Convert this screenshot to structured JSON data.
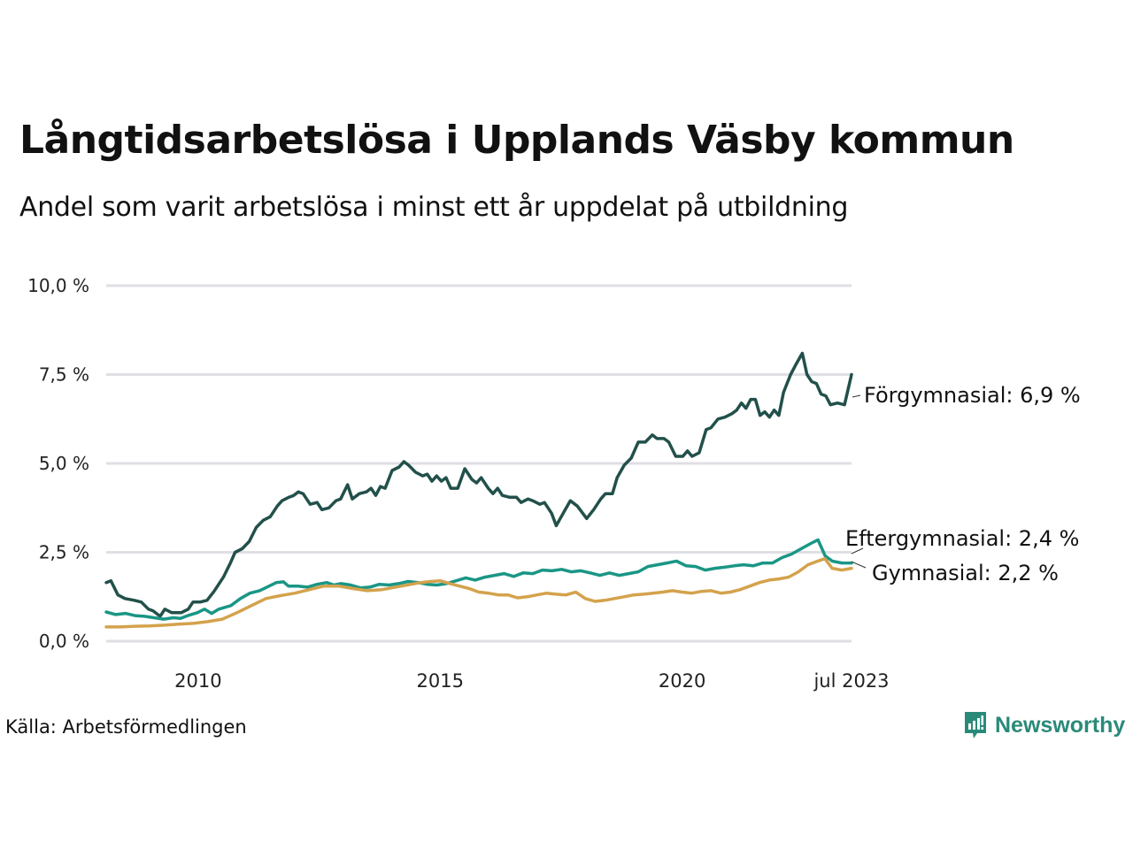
{
  "header": {
    "title": "Långtidsarbetslösa i Upplands Väsby kommun",
    "subtitle": "Andel som varit arbetslösa i minst ett år uppdelat på utbildning"
  },
  "footer": {
    "source": "Källa: Arbetsförmedlingen",
    "brand": "Newsworthy",
    "brand_icon": "newsworthy-logo-icon",
    "brand_color": "#2a8a7a"
  },
  "chart_data": {
    "type": "line",
    "title": "Långtidsarbetslösa i Upplands Väsby kommun",
    "subtitle": "Andel som varit arbetslösa i minst ett år uppdelat på utbildning",
    "xlabel": "",
    "ylabel": "",
    "x_ticks": [
      {
        "value": 2010,
        "label": "2010"
      },
      {
        "value": 2015,
        "label": "2015"
      },
      {
        "value": 2020,
        "label": "2020"
      },
      {
        "value": 2023.5,
        "label": "jul 2023"
      }
    ],
    "y_ticks": [
      {
        "value": 0,
        "label": "0,0 %"
      },
      {
        "value": 2.5,
        "label": "2,5 %"
      },
      {
        "value": 5,
        "label": "5,0 %"
      },
      {
        "value": 7.5,
        "label": "7,5 %"
      },
      {
        "value": 10,
        "label": "10,0 %"
      }
    ],
    "xlim": [
      2008.1,
      2023.5
    ],
    "ylim": [
      0,
      10
    ],
    "grid": "horizontal",
    "legend": "end-of-line labels (right)",
    "series": [
      {
        "name": "Förgymnasial",
        "end_label": "Förgymnasial: 6,9 %",
        "color": "#22504a",
        "points": [
          [
            2008.1,
            1.65
          ],
          [
            2008.2,
            1.7
          ],
          [
            2008.35,
            1.3
          ],
          [
            2008.5,
            1.2
          ],
          [
            2008.7,
            1.15
          ],
          [
            2008.85,
            1.1
          ],
          [
            2009.0,
            0.9
          ],
          [
            2009.1,
            0.85
          ],
          [
            2009.25,
            0.7
          ],
          [
            2009.35,
            0.9
          ],
          [
            2009.5,
            0.8
          ],
          [
            2009.7,
            0.8
          ],
          [
            2009.85,
            0.9
          ],
          [
            2009.95,
            1.1
          ],
          [
            2010.1,
            1.1
          ],
          [
            2010.25,
            1.15
          ],
          [
            2010.4,
            1.4
          ],
          [
            2010.6,
            1.8
          ],
          [
            2010.75,
            2.2
          ],
          [
            2010.85,
            2.5
          ],
          [
            2011.0,
            2.6
          ],
          [
            2011.15,
            2.8
          ],
          [
            2011.3,
            3.2
          ],
          [
            2011.45,
            3.4
          ],
          [
            2011.6,
            3.5
          ],
          [
            2011.75,
            3.8
          ],
          [
            2011.85,
            3.95
          ],
          [
            2012.0,
            4.05
          ],
          [
            2012.1,
            4.1
          ],
          [
            2012.2,
            4.2
          ],
          [
            2012.3,
            4.15
          ],
          [
            2012.45,
            3.85
          ],
          [
            2012.6,
            3.9
          ],
          [
            2012.7,
            3.7
          ],
          [
            2012.85,
            3.75
          ],
          [
            2013.0,
            3.95
          ],
          [
            2013.1,
            4.0
          ],
          [
            2013.25,
            4.4
          ],
          [
            2013.35,
            4.0
          ],
          [
            2013.5,
            4.15
          ],
          [
            2013.65,
            4.2
          ],
          [
            2013.75,
            4.3
          ],
          [
            2013.85,
            4.1
          ],
          [
            2013.95,
            4.35
          ],
          [
            2014.05,
            4.3
          ],
          [
            2014.2,
            4.8
          ],
          [
            2014.35,
            4.9
          ],
          [
            2014.45,
            5.05
          ],
          [
            2014.55,
            4.95
          ],
          [
            2014.7,
            4.75
          ],
          [
            2014.85,
            4.65
          ],
          [
            2014.95,
            4.7
          ],
          [
            2015.05,
            4.5
          ],
          [
            2015.15,
            4.65
          ],
          [
            2015.25,
            4.5
          ],
          [
            2015.35,
            4.6
          ],
          [
            2015.45,
            4.3
          ],
          [
            2015.6,
            4.3
          ],
          [
            2015.75,
            4.85
          ],
          [
            2015.9,
            4.55
          ],
          [
            2016.0,
            4.45
          ],
          [
            2016.1,
            4.6
          ],
          [
            2016.25,
            4.3
          ],
          [
            2016.35,
            4.15
          ],
          [
            2016.45,
            4.3
          ],
          [
            2016.55,
            4.1
          ],
          [
            2016.7,
            4.05
          ],
          [
            2016.85,
            4.05
          ],
          [
            2016.95,
            3.9
          ],
          [
            2017.1,
            4.0
          ],
          [
            2017.2,
            3.95
          ],
          [
            2017.35,
            3.85
          ],
          [
            2017.45,
            3.9
          ],
          [
            2017.6,
            3.6
          ],
          [
            2017.7,
            3.25
          ],
          [
            2017.85,
            3.6
          ],
          [
            2018.0,
            3.95
          ],
          [
            2018.15,
            3.8
          ],
          [
            2018.35,
            3.45
          ],
          [
            2018.5,
            3.7
          ],
          [
            2018.65,
            4.0
          ],
          [
            2018.75,
            4.15
          ],
          [
            2018.9,
            4.15
          ],
          [
            2019.0,
            4.6
          ],
          [
            2019.15,
            4.95
          ],
          [
            2019.3,
            5.15
          ],
          [
            2019.45,
            5.6
          ],
          [
            2019.6,
            5.6
          ],
          [
            2019.75,
            5.8
          ],
          [
            2019.85,
            5.7
          ],
          [
            2020.0,
            5.7
          ],
          [
            2020.1,
            5.6
          ],
          [
            2020.25,
            5.2
          ],
          [
            2020.4,
            5.2
          ],
          [
            2020.5,
            5.35
          ],
          [
            2020.6,
            5.2
          ],
          [
            2020.75,
            5.3
          ],
          [
            2020.9,
            5.95
          ],
          [
            2021.0,
            6.0
          ],
          [
            2021.15,
            6.25
          ],
          [
            2021.3,
            6.3
          ],
          [
            2021.45,
            6.4
          ],
          [
            2021.55,
            6.5
          ],
          [
            2021.65,
            6.7
          ],
          [
            2021.75,
            6.55
          ],
          [
            2021.85,
            6.8
          ],
          [
            2021.95,
            6.8
          ],
          [
            2022.05,
            6.35
          ],
          [
            2022.15,
            6.45
          ],
          [
            2022.25,
            6.3
          ],
          [
            2022.35,
            6.5
          ],
          [
            2022.45,
            6.35
          ],
          [
            2022.55,
            7.0
          ],
          [
            2022.7,
            7.5
          ],
          [
            2022.8,
            7.75
          ],
          [
            2022.95,
            8.1
          ],
          [
            2023.05,
            7.5
          ],
          [
            2023.15,
            7.3
          ],
          [
            2023.25,
            7.25
          ],
          [
            2023.35,
            6.95
          ],
          [
            2023.45,
            6.9
          ],
          [
            2023.55,
            6.65
          ],
          [
            2023.7,
            6.7
          ],
          [
            2023.85,
            6.65
          ],
          [
            2024.0,
            7.5
          ]
        ]
      },
      {
        "name": "Eftergymnasial",
        "end_label": "Eftergymnasial: 2,4 %",
        "color": "#1a9685",
        "points": [
          [
            2008.1,
            0.82
          ],
          [
            2008.3,
            0.75
          ],
          [
            2008.5,
            0.78
          ],
          [
            2008.7,
            0.72
          ],
          [
            2008.9,
            0.7
          ],
          [
            2009.1,
            0.66
          ],
          [
            2009.3,
            0.62
          ],
          [
            2009.5,
            0.66
          ],
          [
            2009.65,
            0.64
          ],
          [
            2009.8,
            0.72
          ],
          [
            2010.0,
            0.8
          ],
          [
            2010.15,
            0.9
          ],
          [
            2010.3,
            0.78
          ],
          [
            2010.45,
            0.9
          ],
          [
            2010.7,
            1.0
          ],
          [
            2010.9,
            1.2
          ],
          [
            2011.1,
            1.35
          ],
          [
            2011.3,
            1.42
          ],
          [
            2011.5,
            1.55
          ],
          [
            2011.65,
            1.65
          ],
          [
            2011.8,
            1.67
          ],
          [
            2011.9,
            1.55
          ],
          [
            2012.1,
            1.55
          ],
          [
            2012.3,
            1.52
          ],
          [
            2012.5,
            1.6
          ],
          [
            2012.7,
            1.65
          ],
          [
            2012.85,
            1.58
          ],
          [
            2013.0,
            1.62
          ],
          [
            2013.2,
            1.58
          ],
          [
            2013.4,
            1.5
          ],
          [
            2013.6,
            1.52
          ],
          [
            2013.8,
            1.6
          ],
          [
            2014.0,
            1.58
          ]
        ]
      },
      {
        "name": "Gymnasial",
        "end_label": "Gymnasial: 2,2 %",
        "color": "#d4a24c",
        "points": [
          [
            2008.1,
            0.4
          ],
          [
            2008.4,
            0.4
          ],
          [
            2008.7,
            0.42
          ],
          [
            2009.0,
            0.43
          ],
          [
            2009.3,
            0.45
          ],
          [
            2009.6,
            0.48
          ],
          [
            2009.9,
            0.5
          ],
          [
            2010.2,
            0.55
          ],
          [
            2010.5,
            0.62
          ],
          [
            2010.8,
            0.8
          ],
          [
            2011.1,
            1.0
          ],
          [
            2011.4,
            1.2
          ],
          [
            2011.7,
            1.28
          ],
          [
            2012.0,
            1.35
          ],
          [
            2012.3,
            1.45
          ],
          [
            2012.6,
            1.55
          ],
          [
            2012.9,
            1.55
          ],
          [
            2013.2,
            1.48
          ],
          [
            2013.5,
            1.42
          ],
          [
            2013.8,
            1.45
          ],
          [
            2014.0,
            1.5
          ]
        ]
      }
    ]
  }
}
